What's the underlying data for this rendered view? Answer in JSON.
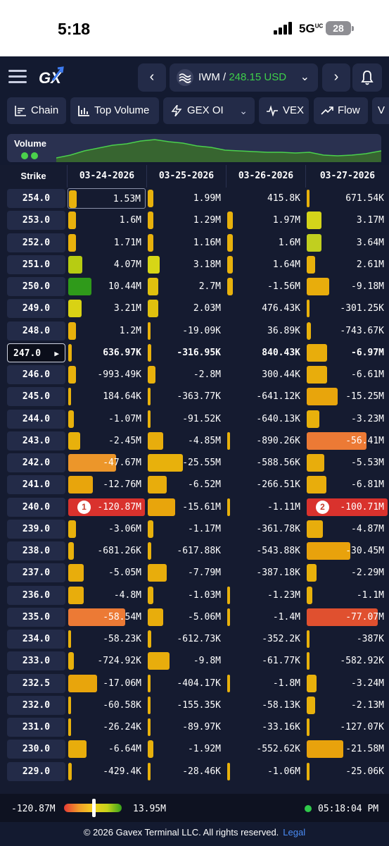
{
  "status_bar": {
    "time": "5:18",
    "network": "5G",
    "network_sup": "UC",
    "battery": "28"
  },
  "header": {
    "ticker": "IWM",
    "separator": " / ",
    "price": "248.15 USD",
    "prev_icon": "chevron-left-icon",
    "next_icon": "chevron-right-icon",
    "dropdown_icon": "chevron-down-icon",
    "bell_icon": "bell-icon"
  },
  "toolbar": [
    {
      "label": "Chain",
      "icon": "chain-icon"
    },
    {
      "label": "Top Volume",
      "icon": "bar-chart-icon"
    },
    {
      "label": "GEX OI",
      "icon": "lightning-icon",
      "caret": "⌄"
    },
    {
      "label": "VEX",
      "icon": "pulse-icon"
    },
    {
      "label": "Flow",
      "icon": "trend-icon"
    },
    {
      "label": "V",
      "icon": "partial-icon"
    }
  ],
  "volume": {
    "label": "Volume"
  },
  "grid": {
    "strike_header": "Strike",
    "dates": [
      "03-24-2026",
      "03-25-2026",
      "03-26-2026",
      "03-27-2026"
    ],
    "rows": [
      {
        "strike": "254.0",
        "cells": [
          {
            "v": "1.53M",
            "f": 0.1,
            "c": "#e8b10c",
            "sel": true
          },
          {
            "v": "1.99M",
            "f": 0.07,
            "c": "#e8b10c"
          },
          {
            "v": "415.8K",
            "f": 0,
            "c": ""
          },
          {
            "v": "671.54K",
            "f": 0.03,
            "c": "#e8b10c"
          }
        ]
      },
      {
        "strike": "253.0",
        "cells": [
          {
            "v": "1.6M",
            "f": 0.1,
            "c": "#e8b10c"
          },
          {
            "v": "1.29M",
            "f": 0.07,
            "c": "#e8b10c"
          },
          {
            "v": "1.97M",
            "f": 0.07,
            "c": "#e8b10c"
          },
          {
            "v": "3.17M",
            "f": 0.18,
            "c": "#d4d41a"
          }
        ]
      },
      {
        "strike": "252.0",
        "cells": [
          {
            "v": "1.71M",
            "f": 0.1,
            "c": "#e8b10c"
          },
          {
            "v": "1.16M",
            "f": 0.07,
            "c": "#e8b10c"
          },
          {
            "v": "1.6M",
            "f": 0.07,
            "c": "#e8b10c"
          },
          {
            "v": "3.64M",
            "f": 0.18,
            "c": "#c1cf1f"
          }
        ]
      },
      {
        "strike": "251.0",
        "cells": [
          {
            "v": "4.07M",
            "f": 0.18,
            "c": "#b7cc12"
          },
          {
            "v": "3.18M",
            "f": 0.16,
            "c": "#d7d616"
          },
          {
            "v": "1.64M",
            "f": 0.07,
            "c": "#e8b10c"
          },
          {
            "v": "2.61M",
            "f": 0.1,
            "c": "#e8b10c"
          }
        ]
      },
      {
        "strike": "250.0",
        "cells": [
          {
            "v": "10.44M",
            "f": 0.3,
            "c": "#2f9a1a"
          },
          {
            "v": "2.7M",
            "f": 0.14,
            "c": "#e0c00e"
          },
          {
            "v": "-1.56M",
            "f": 0.07,
            "c": "#e8b10c"
          },
          {
            "v": "-9.18M",
            "f": 0.28,
            "c": "#e8ad0c"
          }
        ]
      },
      {
        "strike": "249.0",
        "cells": [
          {
            "v": "3.21M",
            "f": 0.17,
            "c": "#d9d214"
          },
          {
            "v": "2.03M",
            "f": 0.14,
            "c": "#e0c00e"
          },
          {
            "v": "476.43K",
            "f": 0,
            "c": ""
          },
          {
            "v": "-301.25K",
            "f": 0.03,
            "c": "#e8b10c"
          }
        ]
      },
      {
        "strike": "248.0",
        "cells": [
          {
            "v": "1.2M",
            "f": 0.1,
            "c": "#e8b10c"
          },
          {
            "v": "-19.09K",
            "f": 0.04,
            "c": "#e8b10c"
          },
          {
            "v": "36.89K",
            "f": 0,
            "c": ""
          },
          {
            "v": "-743.67K",
            "f": 0.05,
            "c": "#e8b10c"
          }
        ]
      },
      {
        "strike": "247.0",
        "spot": true,
        "cells": [
          {
            "v": "636.97K",
            "f": 0.05,
            "c": "#e8b10c"
          },
          {
            "v": "-316.95K",
            "f": 0.05,
            "c": "#e8b10c"
          },
          {
            "v": "840.43K",
            "f": 0,
            "c": ""
          },
          {
            "v": "-6.97M",
            "f": 0.25,
            "c": "#e8ad0c"
          }
        ]
      },
      {
        "strike": "246.0",
        "cells": [
          {
            "v": "-993.49K",
            "f": 0.1,
            "c": "#e8b10c"
          },
          {
            "v": "-2.8M",
            "f": 0.1,
            "c": "#e8b10c"
          },
          {
            "v": "300.44K",
            "f": 0,
            "c": ""
          },
          {
            "v": "-6.61M",
            "f": 0.25,
            "c": "#e8ad0c"
          }
        ]
      },
      {
        "strike": "245.0",
        "cells": [
          {
            "v": "184.64K",
            "f": 0.04,
            "c": "#e8b10c"
          },
          {
            "v": "-363.77K",
            "f": 0.04,
            "c": "#e8b10c"
          },
          {
            "v": "-641.12K",
            "f": 0,
            "c": ""
          },
          {
            "v": "-15.25M",
            "f": 0.38,
            "c": "#e8a50c"
          }
        ]
      },
      {
        "strike": "244.0",
        "cells": [
          {
            "v": "-1.07M",
            "f": 0.07,
            "c": "#e8b10c"
          },
          {
            "v": "-91.52K",
            "f": 0.03,
            "c": "#e8b10c"
          },
          {
            "v": "-640.13K",
            "f": 0,
            "c": ""
          },
          {
            "v": "-3.23M",
            "f": 0.16,
            "c": "#e8b10c"
          }
        ]
      },
      {
        "strike": "243.0",
        "cells": [
          {
            "v": "-2.45M",
            "f": 0.16,
            "c": "#e8b10c"
          },
          {
            "v": "-4.85M",
            "f": 0.2,
            "c": "#e8ad0c"
          },
          {
            "v": "-890.26K",
            "f": 0.03,
            "c": "#e8b10c"
          },
          {
            "v": "-56.41M",
            "f": 0.74,
            "c": "#ec7a35"
          }
        ]
      },
      {
        "strike": "242.0",
        "cells": [
          {
            "v": "-47.67M",
            "f": 0.62,
            "c": "#ec962a"
          },
          {
            "v": "-25.55M",
            "f": 0.46,
            "c": "#e8b10c"
          },
          {
            "v": "-588.56K",
            "f": 0,
            "c": ""
          },
          {
            "v": "-5.53M",
            "f": 0.22,
            "c": "#e8ad0c"
          }
        ]
      },
      {
        "strike": "241.0",
        "cells": [
          {
            "v": "-12.76M",
            "f": 0.32,
            "c": "#e8a50c"
          },
          {
            "v": "-6.52M",
            "f": 0.25,
            "c": "#e8ad0c"
          },
          {
            "v": "-266.51K",
            "f": 0,
            "c": ""
          },
          {
            "v": "-6.81M",
            "f": 0.24,
            "c": "#e8ad0c"
          }
        ]
      },
      {
        "strike": "240.0",
        "cells": [
          {
            "v": "-120.87M",
            "f": 1.0,
            "c": "#d9322d",
            "badge": "1"
          },
          {
            "v": "-15.61M",
            "f": 0.36,
            "c": "#e8a50c"
          },
          {
            "v": "-1.11M",
            "f": 0.03,
            "c": "#e8b10c"
          },
          {
            "v": "-100.71M",
            "f": 1.0,
            "c": "#d9322d",
            "badge": "2"
          }
        ]
      },
      {
        "strike": "239.0",
        "cells": [
          {
            "v": "-3.06M",
            "f": 0.1,
            "c": "#e8b10c"
          },
          {
            "v": "-1.17M",
            "f": 0.07,
            "c": "#e8b10c"
          },
          {
            "v": "-361.78K",
            "f": 0,
            "c": ""
          },
          {
            "v": "-4.87M",
            "f": 0.2,
            "c": "#e8ad0c"
          }
        ]
      },
      {
        "strike": "238.0",
        "cells": [
          {
            "v": "-681.26K",
            "f": 0.07,
            "c": "#e8b10c"
          },
          {
            "v": "-617.88K",
            "f": 0.05,
            "c": "#e8b10c"
          },
          {
            "v": "-543.88K",
            "f": 0,
            "c": ""
          },
          {
            "v": "-30.45M",
            "f": 0.54,
            "c": "#e8a20c"
          }
        ]
      },
      {
        "strike": "237.0",
        "cells": [
          {
            "v": "-5.05M",
            "f": 0.2,
            "c": "#e8ad0c"
          },
          {
            "v": "-7.79M",
            "f": 0.25,
            "c": "#e8ad0c"
          },
          {
            "v": "-387.18K",
            "f": 0,
            "c": ""
          },
          {
            "v": "-2.29M",
            "f": 0.12,
            "c": "#e8b10c"
          }
        ]
      },
      {
        "strike": "236.0",
        "cells": [
          {
            "v": "-4.8M",
            "f": 0.2,
            "c": "#e8ad0c"
          },
          {
            "v": "-1.03M",
            "f": 0.07,
            "c": "#e8b10c"
          },
          {
            "v": "-1.23M",
            "f": 0.03,
            "c": "#e8b10c"
          },
          {
            "v": "-1.1M",
            "f": 0.07,
            "c": "#e8b10c"
          }
        ]
      },
      {
        "strike": "235.0",
        "cells": [
          {
            "v": "-58.54M",
            "f": 0.74,
            "c": "#ec7a35"
          },
          {
            "v": "-5.06M",
            "f": 0.2,
            "c": "#e8ad0c"
          },
          {
            "v": "-1.4M",
            "f": 0.03,
            "c": "#e8b10c"
          },
          {
            "v": "-77.07M",
            "f": 0.88,
            "c": "#e0502f"
          }
        ]
      },
      {
        "strike": "234.0",
        "cells": [
          {
            "v": "-58.23K",
            "f": 0.03,
            "c": "#e8b10c"
          },
          {
            "v": "-612.73K",
            "f": 0.05,
            "c": "#e8b10c"
          },
          {
            "v": "-352.2K",
            "f": 0,
            "c": ""
          },
          {
            "v": "-387K",
            "f": 0.03,
            "c": "#e8b10c"
          }
        ]
      },
      {
        "strike": "233.0",
        "cells": [
          {
            "v": "-724.92K",
            "f": 0.07,
            "c": "#e8b10c"
          },
          {
            "v": "-9.8M",
            "f": 0.28,
            "c": "#e8ad0c"
          },
          {
            "v": "-61.77K",
            "f": 0,
            "c": ""
          },
          {
            "v": "-582.92K",
            "f": 0.03,
            "c": "#e8b10c"
          }
        ]
      },
      {
        "strike": "232.5",
        "cells": [
          {
            "v": "-17.06M",
            "f": 0.38,
            "c": "#e8a50c"
          },
          {
            "v": "-404.17K",
            "f": 0.03,
            "c": "#e8b10c"
          },
          {
            "v": "-1.8M",
            "f": 0.03,
            "c": "#e8b10c"
          },
          {
            "v": "-3.24M",
            "f": 0.12,
            "c": "#e8b10c"
          }
        ]
      },
      {
        "strike": "232.0",
        "cells": [
          {
            "v": "-60.58K",
            "f": 0.03,
            "c": "#e8b10c"
          },
          {
            "v": "-155.35K",
            "f": 0.03,
            "c": "#e8b10c"
          },
          {
            "v": "-58.13K",
            "f": 0,
            "c": ""
          },
          {
            "v": "-2.13M",
            "f": 0.1,
            "c": "#e8b10c"
          }
        ]
      },
      {
        "strike": "231.0",
        "cells": [
          {
            "v": "-26.24K",
            "f": 0.03,
            "c": "#e8b10c"
          },
          {
            "v": "-89.97K",
            "f": 0.03,
            "c": "#e8b10c"
          },
          {
            "v": "-33.16K",
            "f": 0,
            "c": ""
          },
          {
            "v": "-127.07K",
            "f": 0.03,
            "c": "#e8b10c"
          }
        ]
      },
      {
        "strike": "230.0",
        "cells": [
          {
            "v": "-6.64M",
            "f": 0.24,
            "c": "#e8ad0c"
          },
          {
            "v": "-1.92M",
            "f": 0.07,
            "c": "#e8b10c"
          },
          {
            "v": "-552.62K",
            "f": 0,
            "c": ""
          },
          {
            "v": "-21.58M",
            "f": 0.45,
            "c": "#e8a20c"
          }
        ]
      },
      {
        "strike": "229.0",
        "cells": [
          {
            "v": "-429.4K",
            "f": 0.05,
            "c": "#e8b10c"
          },
          {
            "v": "-28.46K",
            "f": 0.03,
            "c": "#e8b10c"
          },
          {
            "v": "-1.06M",
            "f": 0.03,
            "c": "#e8b10c"
          },
          {
            "v": "-25.06K",
            "f": 0.03,
            "c": "#e8b10c"
          }
        ]
      }
    ]
  },
  "legend": {
    "min": "-120.87M",
    "max": "13.95M",
    "clock": "05:18:04 PM"
  },
  "footer": {
    "text": "© 2026 Gavex Terminal LLC. All rights reserved.",
    "link": "Legal"
  },
  "colors": {
    "accent": "#3ecf4a",
    "panel": "#232b48",
    "background": "#151b30"
  }
}
